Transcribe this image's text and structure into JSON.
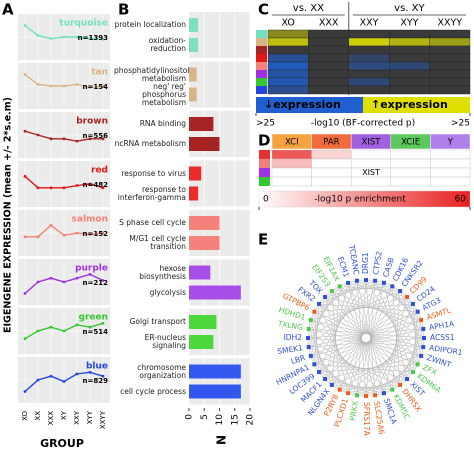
{
  "chart_data": [
    {
      "type": "line",
      "panel_label": "A",
      "ylabel": "EIGENGENE EXPRESSION (mean +/- 2*s.e.m)",
      "xlabel": "GROUP",
      "categories": [
        "XO",
        "XX",
        "XXX",
        "XY",
        "XXY",
        "XYY",
        "XXYY"
      ],
      "ylim": [
        -0.3,
        0.3
      ],
      "series": [
        {
          "name": "turquoise",
          "n_label": "n=1393",
          "color": "#6fe0c0",
          "values": [
            0.15,
            0.02,
            -0.02,
            0.0,
            0.0,
            -0.02,
            -0.03
          ]
        },
        {
          "name": "tan",
          "n_label": "n=154",
          "color": "#d8b488",
          "values": [
            0.15,
            0.02,
            0.0,
            0.0,
            0.02,
            -0.02,
            0.0
          ]
        },
        {
          "name": "brown",
          "n_label": "n=556",
          "color": "#a82424",
          "values": [
            0.05,
            0.0,
            -0.05,
            -0.05,
            -0.08,
            -0.05,
            -0.05
          ]
        },
        {
          "name": "red",
          "n_label": "n=482",
          "color": "#e01818",
          "values": [
            0.1,
            -0.05,
            -0.05,
            -0.05,
            -0.02,
            0.0,
            -0.05
          ]
        },
        {
          "name": "salmon",
          "n_label": "n=152",
          "color": "#f4827a",
          "values": [
            -0.05,
            -0.05,
            0.1,
            -0.03,
            0.0,
            -0.02,
            0.0
          ]
        },
        {
          "name": "purple",
          "n_label": "n=212",
          "color": "#a030e8",
          "values": [
            -0.15,
            0.0,
            0.05,
            0.0,
            0.05,
            0.1,
            0.02
          ]
        },
        {
          "name": "green",
          "n_label": "n=514",
          "color": "#34c830",
          "values": [
            -0.1,
            0.0,
            0.05,
            0.0,
            0.08,
            0.05,
            0.1
          ]
        },
        {
          "name": "blue",
          "n_label": "n=829",
          "color": "#2446e0",
          "values": [
            -0.15,
            0.0,
            0.05,
            -0.02,
            0.08,
            0.1,
            0.05
          ]
        }
      ]
    },
    {
      "type": "bar",
      "panel_label": "B",
      "xlabel": "N",
      "xlim": [
        0,
        20
      ],
      "xticks": [
        0,
        5,
        10,
        15,
        20
      ],
      "categories": [
        "protein localization",
        "oxidation-reduction",
        "phosphatidylinositol metabolism",
        "neg' reg' phosphorus metabolism",
        "RNA binding",
        "ncRNA metabolism",
        "response to virus",
        "response to interferon-gamma",
        "S phase cell cycle",
        "M/G1 cell cycle transition",
        "hexose biosynthesis",
        "glycolysis",
        "Golgi transport",
        "ER-nucleus signaling",
        "chromosome organization",
        "cell cycle process"
      ],
      "values": [
        3,
        3,
        2.5,
        2.5,
        8,
        10,
        4,
        3,
        10,
        10,
        7,
        17,
        9,
        8,
        17,
        17
      ],
      "colors": [
        "#7fe0c0",
        "#7fe0c0",
        "#d8b488",
        "#d8b488",
        "#a82424",
        "#a82424",
        "#ee2a2a",
        "#ee2a2a",
        "#f4827a",
        "#f4827a",
        "#a84ee8",
        "#a84ee8",
        "#4cd83c",
        "#4cd83c",
        "#3358f0",
        "#3358f0"
      ]
    },
    {
      "type": "heatmap",
      "panel_label": "C",
      "columns": [
        "XO",
        "XXX",
        "XXY",
        "XYY",
        "XXYY"
      ],
      "column_group_labels": [
        "vs. XX",
        "vs. XY"
      ],
      "column_group": [
        0,
        0,
        1,
        1,
        1
      ],
      "row_colors": [
        "#6fe0c0",
        "#d8b488",
        "#a82424",
        "#e01818",
        "#f4827a",
        "#a030e8",
        "#34c830",
        "#2446e0"
      ],
      "values": [
        [
          12,
          0,
          0,
          0,
          0
        ],
        [
          20,
          0,
          22,
          18,
          15
        ],
        [
          0,
          0,
          0,
          0,
          0
        ],
        [
          -15,
          0,
          -8,
          0,
          0
        ],
        [
          -22,
          0,
          -12,
          -10,
          0
        ],
        [
          -18,
          0,
          0,
          0,
          0
        ],
        [
          -20,
          0,
          -10,
          0,
          0
        ],
        [
          -14,
          0,
          0,
          0,
          0
        ]
      ],
      "clim": [
        -25,
        25
      ],
      "cticks": [
        {
          "value": -25,
          "label": ">25"
        },
        {
          "value": 25,
          "label": ">25"
        }
      ],
      "scale_title": "-log10 (BF-corrected p)",
      "legend_low": "↓expression",
      "legend_high": "↑expression",
      "color_low": "#1f5fd0",
      "color_mid": "#3a3a3a",
      "color_high": "#e0e000"
    },
    {
      "type": "heatmap",
      "panel_label": "D",
      "columns": [
        "XCI",
        "PAR",
        "XIST",
        "XCIE",
        "Y"
      ],
      "header_colors": [
        "#f7a440",
        "#f26b3a",
        "#a060e0",
        "#5cc85c",
        "#b07ee8"
      ],
      "row_colors": [
        "#e53030",
        "#f08080",
        "#a030e8",
        "#34c830"
      ],
      "values": [
        [
          45,
          12,
          0,
          0,
          0
        ],
        [
          18,
          0,
          0,
          0,
          0
        ],
        [
          0,
          0,
          0,
          0,
          0
        ],
        [
          0,
          0,
          0,
          0,
          0
        ]
      ],
      "cell_labels": [
        [
          null,
          null,
          null,
          null,
          null
        ],
        [
          null,
          null,
          null,
          null,
          null
        ],
        [
          null,
          null,
          "XIST",
          null,
          null
        ],
        [
          null,
          null,
          null,
          null,
          null
        ]
      ],
      "clim": [
        0,
        60
      ],
      "cticks": [
        0,
        60
      ],
      "scale_title": "-log10 p enrichment",
      "color_low": "#ffffff",
      "color_high": "#e8201e"
    },
    {
      "type": "network",
      "panel_label": "E",
      "nodes": [
        {
          "label": "DRG1",
          "color": "#3050d0"
        },
        {
          "label": "CTPS2",
          "color": "#3050d0"
        },
        {
          "label": "CA5B",
          "color": "#3050d0"
        },
        {
          "label": "CDK16",
          "color": "#3050d0"
        },
        {
          "label": "CNKSR2",
          "color": "#3050d0"
        },
        {
          "label": "CD99",
          "color": "#e8601c"
        },
        {
          "label": "CD24",
          "color": "#3050d0"
        },
        {
          "label": "ATG3",
          "color": "#3050d0"
        },
        {
          "label": "ASMTL",
          "color": "#e8601c"
        },
        {
          "label": "APH1A",
          "color": "#3050d0"
        },
        {
          "label": "ACSS1",
          "color": "#3050d0"
        },
        {
          "label": "ADIPOR1",
          "color": "#3050d0"
        },
        {
          "label": "ZWINT",
          "color": "#3050d0"
        },
        {
          "label": "ZFX",
          "color": "#4ec94e"
        },
        {
          "label": "KDM6A",
          "color": "#4ec94e"
        },
        {
          "label": "XIST",
          "color": "#3050d0"
        },
        {
          "label": "DHRSX",
          "color": "#e8601c"
        },
        {
          "label": "KDM5C",
          "color": "#4ec94e"
        },
        {
          "label": "SMC1A",
          "color": "#3050d0"
        },
        {
          "label": "SLC25A6",
          "color": "#e8601c"
        },
        {
          "label": "SFRS17A",
          "color": "#e8601c"
        },
        {
          "label": "PRKX",
          "color": "#4ec94e"
        },
        {
          "label": "PLCXD1",
          "color": "#e8601c"
        },
        {
          "label": "P2RY8",
          "color": "#e8601c"
        },
        {
          "label": "NLGN4X",
          "color": "#3050d0"
        },
        {
          "label": "MACF1",
          "color": "#3050d0"
        },
        {
          "label": "LOC399",
          "color": "#3050d0"
        },
        {
          "label": "HNRNPA1",
          "color": "#3050d0"
        },
        {
          "label": "LBR",
          "color": "#3050d0"
        },
        {
          "label": "SMEK1",
          "color": "#3050d0"
        },
        {
          "label": "IDH2",
          "color": "#3050d0"
        },
        {
          "label": "TXLNG",
          "color": "#4ec94e"
        },
        {
          "label": "HDHD1",
          "color": "#4ec94e"
        },
        {
          "label": "GTPBP6",
          "color": "#e8601c"
        },
        {
          "label": "FXR2",
          "color": "#3050d0"
        },
        {
          "label": "TOX",
          "color": "#3050d0"
        },
        {
          "label": "EIF2S3",
          "color": "#4ec94e"
        },
        {
          "label": "EIF1AX",
          "color": "#4ec94e"
        },
        {
          "label": "ECM1",
          "color": "#3050d0"
        },
        {
          "label": "TCEANC",
          "color": "#3050d0"
        }
      ]
    }
  ]
}
